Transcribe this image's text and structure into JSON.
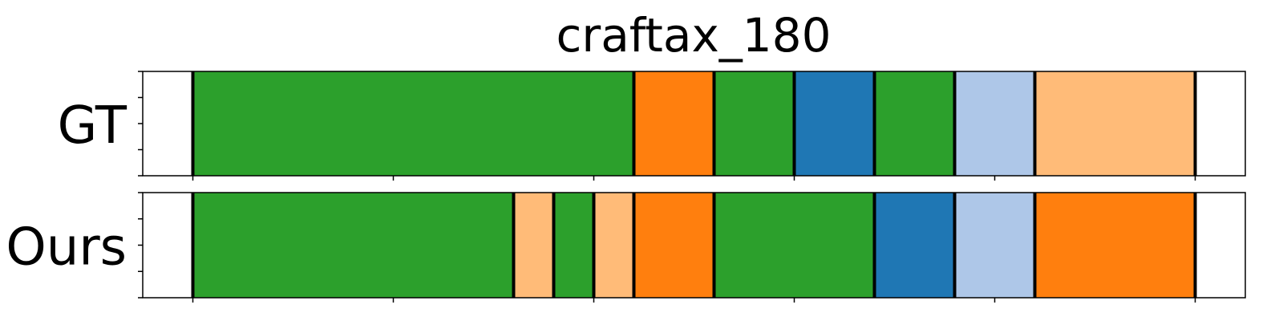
{
  "chart_data": {
    "type": "segmentation-timeline",
    "title": "craftax_180",
    "x_range": [
      0,
      27.5
    ],
    "x_ticks": [
      1.25,
      6.25,
      11.25,
      16.25,
      21.25,
      26.25
    ],
    "rows": [
      {
        "label": "GT",
        "segments": [
          {
            "start": 1.25,
            "end": 12.25,
            "color": "#2ca02c"
          },
          {
            "start": 12.25,
            "end": 14.25,
            "color": "#ff7f0e"
          },
          {
            "start": 14.25,
            "end": 16.25,
            "color": "#2ca02c"
          },
          {
            "start": 16.25,
            "end": 18.25,
            "color": "#1f77b4"
          },
          {
            "start": 18.25,
            "end": 20.25,
            "color": "#2ca02c"
          },
          {
            "start": 20.25,
            "end": 22.25,
            "color": "#aec7e8"
          },
          {
            "start": 22.25,
            "end": 26.25,
            "color": "#ffbb78"
          }
        ]
      },
      {
        "label": "Ours",
        "segments": [
          {
            "start": 1.25,
            "end": 9.25,
            "color": "#2ca02c"
          },
          {
            "start": 9.25,
            "end": 10.25,
            "color": "#ffbb78"
          },
          {
            "start": 10.25,
            "end": 11.25,
            "color": "#2ca02c"
          },
          {
            "start": 11.25,
            "end": 12.25,
            "color": "#ffbb78"
          },
          {
            "start": 12.25,
            "end": 14.25,
            "color": "#ff7f0e"
          },
          {
            "start": 14.25,
            "end": 18.25,
            "color": "#2ca02c"
          },
          {
            "start": 18.25,
            "end": 20.25,
            "color": "#1f77b4"
          },
          {
            "start": 20.25,
            "end": 22.25,
            "color": "#aec7e8"
          },
          {
            "start": 22.25,
            "end": 26.25,
            "color": "#ff7f0e"
          }
        ]
      }
    ]
  }
}
